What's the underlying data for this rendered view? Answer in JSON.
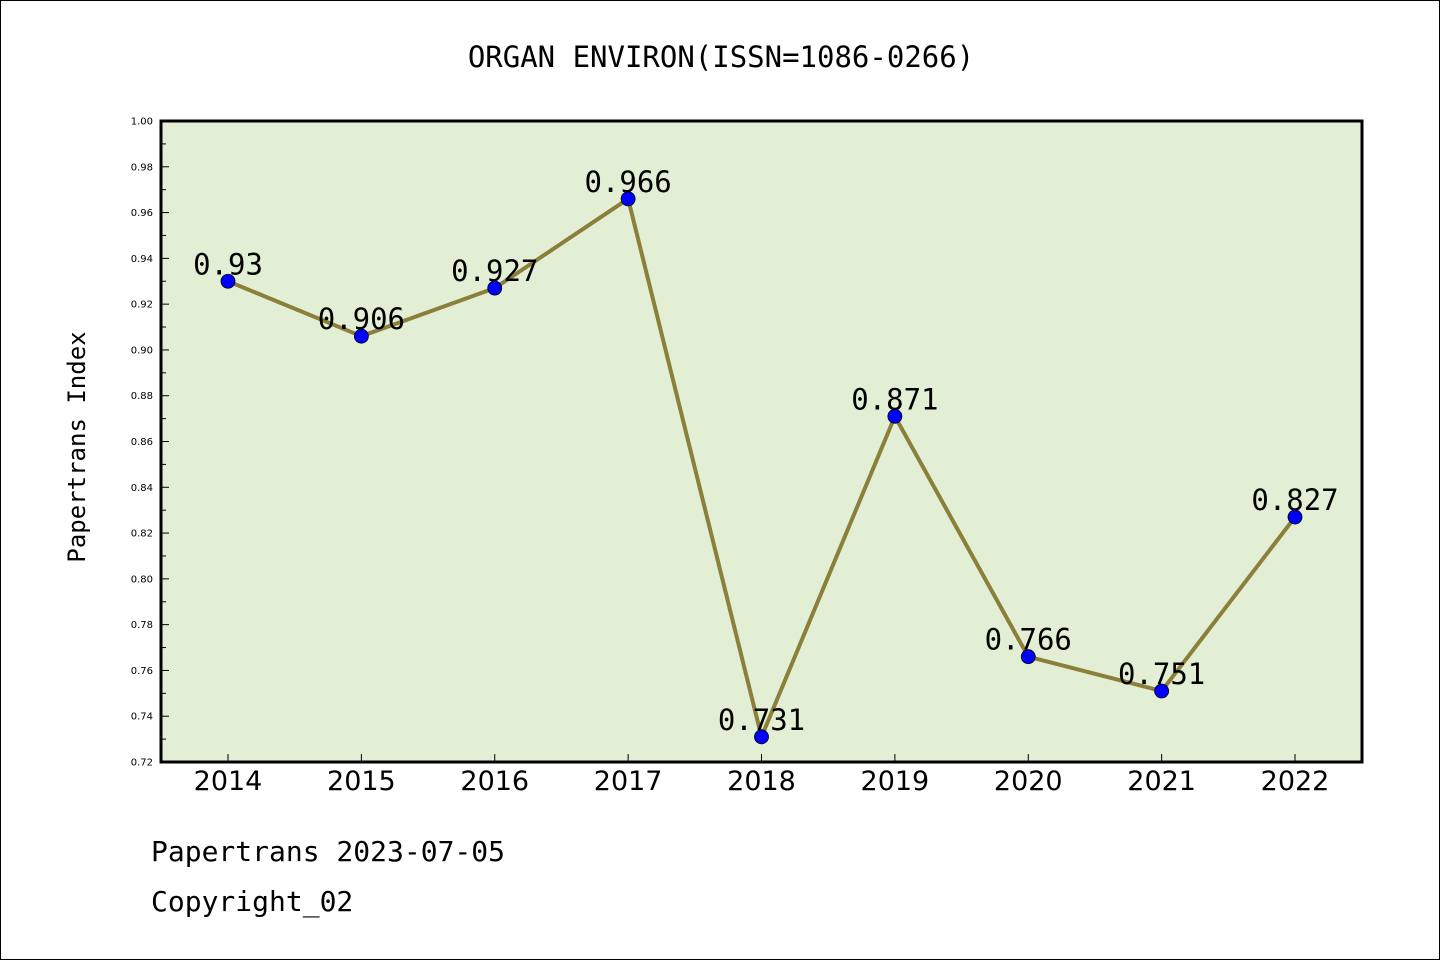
{
  "chart_data": {
    "type": "line",
    "title": "ORGAN ENVIRON(ISSN=1086-0266)",
    "xlabel": "",
    "ylabel": "Papertrans Index",
    "categories": [
      "2014",
      "2015",
      "2016",
      "2017",
      "2018",
      "2019",
      "2020",
      "2021",
      "2022"
    ],
    "series": [
      {
        "values": [
          0.93,
          0.906,
          0.927,
          0.966,
          0.731,
          0.871,
          0.766,
          0.751,
          0.827
        ],
        "data_labels": [
          "0.93",
          "0.906",
          "0.927",
          "0.966",
          "0.731",
          "0.871",
          "0.766",
          "0.751",
          "0.827"
        ]
      }
    ],
    "ylim": [
      0.72,
      1.0
    ],
    "yticks": [
      "0.72",
      "0.74",
      "0.76",
      "0.78",
      "0.80",
      "0.82",
      "0.84",
      "0.86",
      "0.88",
      "0.90",
      "0.92",
      "0.94",
      "0.96",
      "0.98",
      "1.00"
    ],
    "grid": false,
    "colors": {
      "plot_background": "#e2efd5",
      "line": "#8b7f3a",
      "marker": "#0000ff"
    }
  },
  "footer": {
    "source": "Papertrans 2023-07-05",
    "copyright": "Copyright_02"
  }
}
